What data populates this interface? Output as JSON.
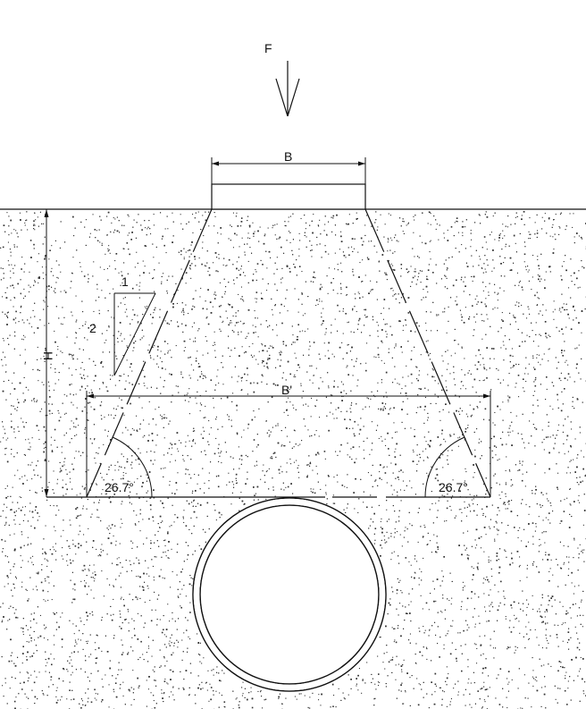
{
  "labels": {
    "force": "F",
    "footing_width": "B",
    "spread_width": "B'",
    "depth": "H",
    "slope_run": "1",
    "slope_rise": "2",
    "angle_left": "26.7°",
    "angle_right": "26.7°"
  }
}
